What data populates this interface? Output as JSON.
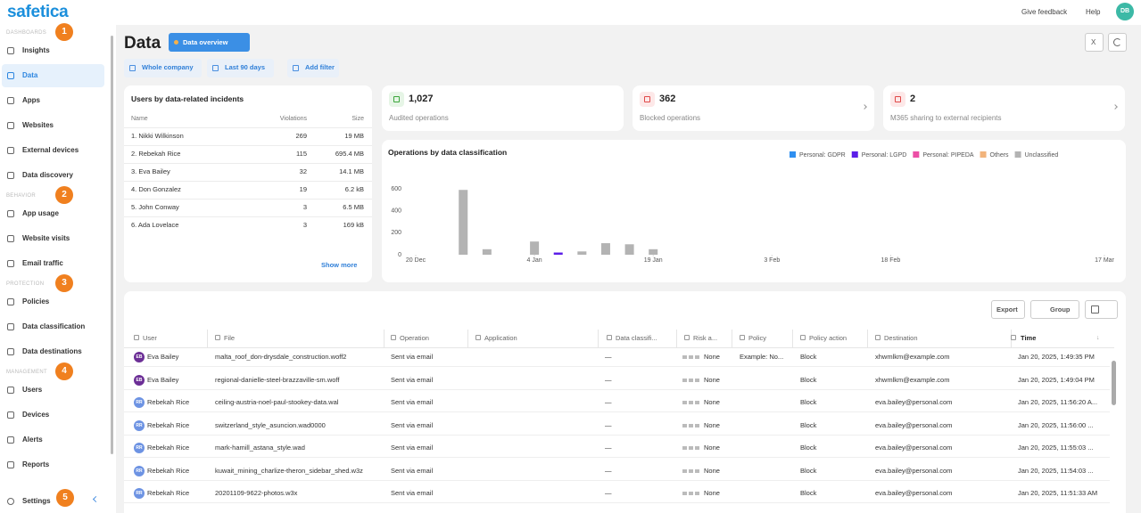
{
  "brand": "safetica",
  "topbar": {
    "feedback": "Give feedback",
    "help": "Help",
    "avatar": "DB"
  },
  "sidebar": {
    "sections": [
      {
        "label": "DASHBOARDS",
        "badge": "1",
        "items": [
          "Insights",
          "Data",
          "Apps",
          "Websites",
          "External devices",
          "Data discovery"
        ]
      },
      {
        "label": "BEHAVIOR",
        "badge": "2",
        "items": [
          "App usage",
          "Website visits",
          "Email traffic"
        ]
      },
      {
        "label": "PROTECTION",
        "badge": "3",
        "items": [
          "Policies",
          "Data classification",
          "Data destinations"
        ]
      },
      {
        "label": "MANAGEMENT",
        "badge": "4",
        "items": [
          "Users",
          "Devices",
          "Alerts",
          "Reports"
        ]
      }
    ],
    "settings": "Settings",
    "settings_badge": "5"
  },
  "page": {
    "title": "Data",
    "view": "Data overview",
    "excel": "X"
  },
  "filters": [
    "Whole company",
    "Last 90 days",
    "Add filter"
  ],
  "users_card": {
    "title": "Users by data-related incidents",
    "columns": [
      "Name",
      "Violations",
      "Size"
    ],
    "rows": [
      [
        "1. Nikki Wilkinson",
        "269",
        "19 MB"
      ],
      [
        "2. Rebekah Rice",
        "115",
        "695.4 MB"
      ],
      [
        "3. Eva Bailey",
        "32",
        "14.1 MB"
      ],
      [
        "4. Don Gonzalez",
        "19",
        "6.2 kB"
      ],
      [
        "5. John Conway",
        "3",
        "6.5 MB"
      ],
      [
        "6. Ada Lovelace",
        "3",
        "169 kB"
      ]
    ],
    "show_more": "Show more"
  },
  "stats": [
    {
      "value": "1,027",
      "label": "Audited operations"
    },
    {
      "value": "362",
      "label": "Blocked operations"
    },
    {
      "value": "2",
      "label": "M365 sharing to external recipients"
    }
  ],
  "chart_data": {
    "type": "bar",
    "title": "Operations by data classification",
    "legend": "top-right",
    "grid": false,
    "x": [
      6,
      9,
      15,
      18,
      21,
      24,
      27,
      30
    ],
    "xlim": [
      0,
      87
    ],
    "xticks": [
      {
        "value": 0,
        "label": "20 Dec"
      },
      {
        "value": 15,
        "label": "4 Jan"
      },
      {
        "value": 30,
        "label": "19 Jan"
      },
      {
        "value": 45,
        "label": "3 Feb"
      },
      {
        "value": 60,
        "label": "18 Feb"
      },
      {
        "value": 87,
        "label": "17 Mar"
      }
    ],
    "ylim": [
      0,
      600
    ],
    "yticks": [
      0,
      200,
      400,
      600
    ],
    "series": [
      {
        "name": "Personal: GDPR",
        "color": "#2f8ff0",
        "values": [
          null,
          null,
          null,
          null,
          null,
          null,
          null,
          null
        ]
      },
      {
        "name": "Personal: LGPD",
        "color": "#5b1ee8",
        "values": [
          null,
          null,
          null,
          20,
          null,
          null,
          null,
          null
        ]
      },
      {
        "name": "Personal: PIPEDA",
        "color": "#ec4fa6",
        "values": [
          null,
          null,
          null,
          null,
          null,
          null,
          null,
          null
        ]
      },
      {
        "name": "Others",
        "color": "#f2b47c",
        "values": [
          null,
          null,
          null,
          null,
          null,
          null,
          null,
          null
        ]
      },
      {
        "name": "Unclassified",
        "color": "#b3b3b3",
        "values": [
          590,
          50,
          120,
          null,
          30,
          105,
          95,
          50
        ]
      }
    ]
  },
  "table": {
    "buttons": [
      "Export",
      "Group"
    ],
    "columns": [
      "User",
      "File",
      "Operation",
      "Application",
      "Data classifi...",
      "Risk a...",
      "Policy",
      "Policy action",
      "Destination",
      "Time"
    ],
    "rows": [
      {
        "initials": "EB",
        "user": "Eva Bailey",
        "file": "malta_roof_don-drysdale_construction.woff2",
        "operation": "Sent via email",
        "data_class": "—",
        "risk": "None",
        "policy": "Example: No...",
        "action": "Block",
        "destination": "xhwmlkm@example.com",
        "time": "Jan 20, 2025, 1:49:35 PM"
      },
      {
        "initials": "EB",
        "user": "Eva Bailey",
        "file": "regional-danielle-steel-brazzaville-sm.woff",
        "operation": "Sent via email",
        "data_class": "—",
        "risk": "None",
        "action": "Block",
        "destination": "xhwmlkm@example.com",
        "time": "Jan 20, 2025, 1:49:04 PM"
      },
      {
        "initials": "RR",
        "user": "Rebekah Rice",
        "file": "ceiling-austria-noel-paul-stookey-data.wal",
        "operation": "Sent via email",
        "data_class": "—",
        "risk": "None",
        "action": "Block",
        "destination": "eva.bailey@personal.com",
        "time": "Jan 20, 2025, 11:56:20 A..."
      },
      {
        "initials": "RR",
        "user": "Rebekah Rice",
        "file": "switzerland_style_asuncion.wad0000",
        "operation": "Sent via email",
        "data_class": "—",
        "risk": "None",
        "action": "Block",
        "destination": "eva.bailey@personal.com",
        "time": "Jan 20, 2025, 11:56:00 ..."
      },
      {
        "initials": "RR",
        "user": "Rebekah Rice",
        "file": "mark-hamill_astana_style.wad",
        "operation": "Sent via email",
        "data_class": "—",
        "risk": "None",
        "action": "Block",
        "destination": "eva.bailey@personal.com",
        "time": "Jan 20, 2025, 11:55:03 ..."
      },
      {
        "initials": "RR",
        "user": "Rebekah Rice",
        "file": "kuwait_mining_charlize-theron_sidebar_shed.w3z",
        "operation": "Sent via email",
        "data_class": "—",
        "risk": "None",
        "action": "Block",
        "destination": "eva.bailey@personal.com",
        "time": "Jan 20, 2025, 11:54:03 ..."
      },
      {
        "initials": "RR",
        "user": "Rebekah Rice",
        "file": "20201109-9622-photos.w3x",
        "operation": "Sent via email",
        "data_class": "—",
        "risk": "None",
        "action": "Block",
        "destination": "eva.bailey@personal.com",
        "time": "Jan 20, 2025, 11:51:33 AM"
      }
    ]
  }
}
